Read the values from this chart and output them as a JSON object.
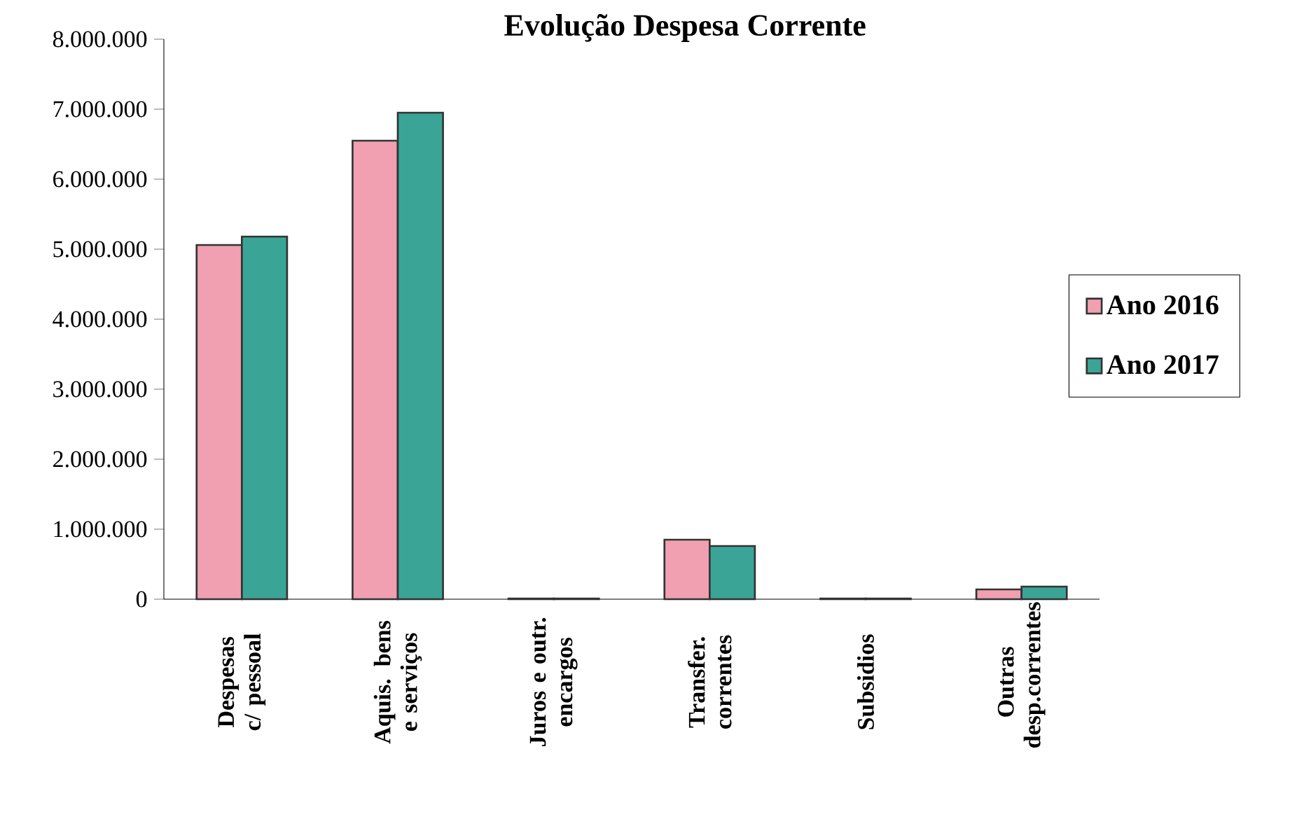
{
  "chart_data": {
    "type": "bar",
    "title": "Evolução Despesa Corrente",
    "categories": [
      "Despesas c/ pessoal",
      "Aquis. bens e serviços",
      "Juros e outr. encargos",
      "Transfer. correntes",
      "Subsidios",
      "Outras desp.correntes"
    ],
    "series": [
      {
        "name": "Ano 2016",
        "color": "#f0a0b0",
        "values": [
          5060000,
          6550000,
          10000,
          850000,
          10000,
          140000
        ]
      },
      {
        "name": "Ano 2017",
        "color": "#3aa596",
        "values": [
          5180000,
          6950000,
          10000,
          760000,
          10000,
          180000
        ]
      }
    ],
    "ylim": [
      0,
      8000000
    ],
    "yticks": [
      {
        "value": 0,
        "label": "0"
      },
      {
        "value": 1000000,
        "label": "1.000.000"
      },
      {
        "value": 2000000,
        "label": "2.000.000"
      },
      {
        "value": 3000000,
        "label": "3.000.000"
      },
      {
        "value": 4000000,
        "label": "4.000.000"
      },
      {
        "value": 5000000,
        "label": "5.000.000"
      },
      {
        "value": 6000000,
        "label": "6.000.000"
      },
      {
        "value": 7000000,
        "label": "7.000.000"
      },
      {
        "value": 8000000,
        "label": "8.000.000"
      }
    ],
    "grid": false,
    "legend": "right"
  }
}
